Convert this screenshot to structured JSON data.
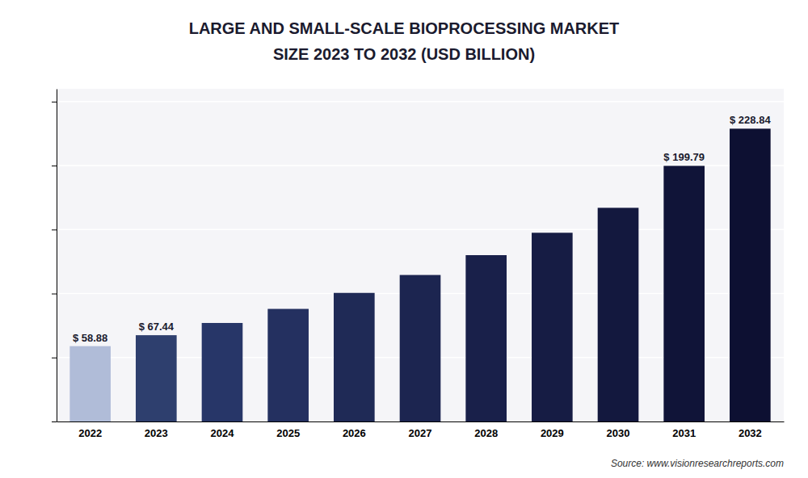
{
  "chart_data": {
    "type": "bar",
    "title": "LARGE AND SMALL-SCALE BIOPROCESSING MARKET",
    "subtitle": "SIZE 2023 TO 2032 (USD BILLION)",
    "categories": [
      "2022",
      "2023",
      "2024",
      "2025",
      "2026",
      "2027",
      "2028",
      "2029",
      "2030",
      "2031",
      "2032"
    ],
    "values": [
      58.88,
      67.44,
      77.0,
      88.0,
      100.5,
      114.5,
      130.0,
      147.5,
      167.0,
      199.79,
      228.84
    ],
    "value_labels": [
      "$ 58.88",
      "$ 67.44",
      null,
      null,
      null,
      null,
      null,
      null,
      null,
      "$ 199.79",
      "$ 228.84"
    ],
    "data_labels": true,
    "colors": [
      "#b0bcd8",
      "#2e3f6e",
      "#273668",
      "#243060",
      "#1f2a56",
      "#1c2550",
      "#19204a",
      "#161c44",
      "#13183e",
      "#101438",
      "#0d1032"
    ],
    "ylim": [
      0,
      260
    ],
    "yticks": [
      0,
      50,
      100,
      150,
      200,
      250
    ],
    "grid": true,
    "tick_labels": "x",
    "annotations": [
      "Source: www.visionresearchreports.com"
    ]
  }
}
